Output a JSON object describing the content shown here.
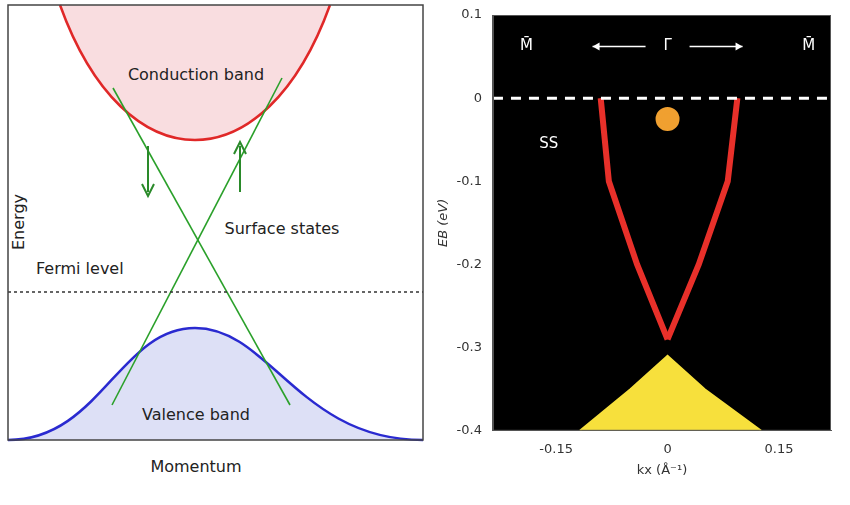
{
  "diagram": {
    "y_axis_label": "Energy",
    "x_axis_label": "Momentum",
    "labels": {
      "conduction_band": "Conduction band",
      "surface_states": "Surface states",
      "fermi_level": "Fermi level",
      "valence_band": "Valence band"
    }
  },
  "chart_data": {
    "type": "line",
    "x_label": "kx (Å⁻¹)",
    "y_label": "EB (eV)",
    "annotations": [
      "M̄",
      "Γ̄",
      "M̄",
      "SS"
    ],
    "xlim": [
      -0.235,
      0.22
    ],
    "xticks": [
      -0.15,
      0,
      0.15
    ],
    "ylim": [
      -0.4,
      0.1
    ],
    "yticks": [
      0.1,
      0,
      -0.1,
      -0.2,
      -0.3,
      -0.4
    ],
    "grid": false,
    "series": [
      {
        "type": "line",
        "color": "#ffffff",
        "line_style": "dashed",
        "x": [
          -0.235,
          0.22
        ],
        "values": [
          0,
          0
        ]
      },
      {
        "type": "line",
        "color": "#e8302a",
        "line_style": "solid",
        "x": [
          -0.09,
          -0.079,
          -0.041,
          0
        ],
        "values": [
          0,
          -0.1,
          -0.2,
          -0.29
        ]
      },
      {
        "type": "line",
        "color": "#e8302a",
        "line_style": "solid",
        "x": [
          0.094,
          0.081,
          0.042,
          0
        ],
        "values": [
          0,
          -0.1,
          -0.2,
          -0.29
        ]
      },
      {
        "type": "area",
        "color": "#f7e03c",
        "line_style": "solid",
        "x": [
          -0.118,
          -0.05,
          0,
          0.05,
          0.126
        ],
        "values": [
          -0.4,
          -0.35,
          -0.31,
          -0.35,
          -0.4
        ]
      },
      {
        "type": "scatter",
        "color": "#f0a030",
        "marker": "circle",
        "x": [
          0
        ],
        "values": [
          -0.025
        ]
      }
    ]
  }
}
